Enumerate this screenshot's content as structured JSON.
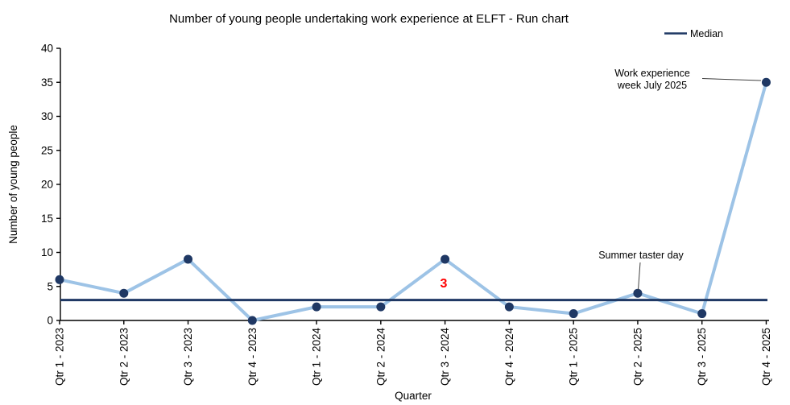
{
  "chart_data": {
    "type": "line",
    "title": "Number of young people undertaking work experience at ELFT - Run chart",
    "xlabel": "Quarter",
    "ylabel": "Number of young people",
    "categories": [
      "Qtr 1 - 2023",
      "Qtr 2 - 2023",
      "Qtr 3 - 2023",
      "Qtr 4 - 2023",
      "Qtr 1 - 2024",
      "Qtr 2 - 2024",
      "Qtr 3 - 2024",
      "Qtr 4 - 2024",
      "Qtr 1 - 2025",
      "Qtr 2 - 2025",
      "Qtr 3 - 2025",
      "Qtr 4 - 2025"
    ],
    "series": [
      {
        "name": "Number of young people",
        "values": [
          6,
          4,
          9,
          0,
          2,
          2,
          9,
          2,
          1,
          4,
          1,
          35
        ]
      }
    ],
    "median": 3,
    "ylim": [
      0,
      40
    ],
    "ytick_step": 5,
    "grid": false,
    "legend": {
      "position": "top-right",
      "entries": [
        "Median"
      ]
    },
    "annotations": [
      {
        "id": "work-experience-week",
        "lines": [
          "Work experience",
          "week July 2025"
        ],
        "target_category": "Qtr 4 - 2025",
        "target_value": 35
      },
      {
        "id": "summer-taster-day",
        "lines": [
          "Summer taster day"
        ],
        "target_category": "Qtr 2 - 2025",
        "target_value": 4
      },
      {
        "id": "highlight-3",
        "lines": [
          "3"
        ],
        "color": "#FF0000",
        "near_category": "Qtr 3 - 2024",
        "near_value": 9
      }
    ]
  },
  "colors": {
    "background": "#FFFFFF",
    "data_line": "#9DC3E6",
    "marker": "#1F3864",
    "median_line": "#1F3864",
    "axis": "#000000",
    "highlight_label": "#FF0000",
    "leader_line": "#404040",
    "text": "#000000"
  }
}
